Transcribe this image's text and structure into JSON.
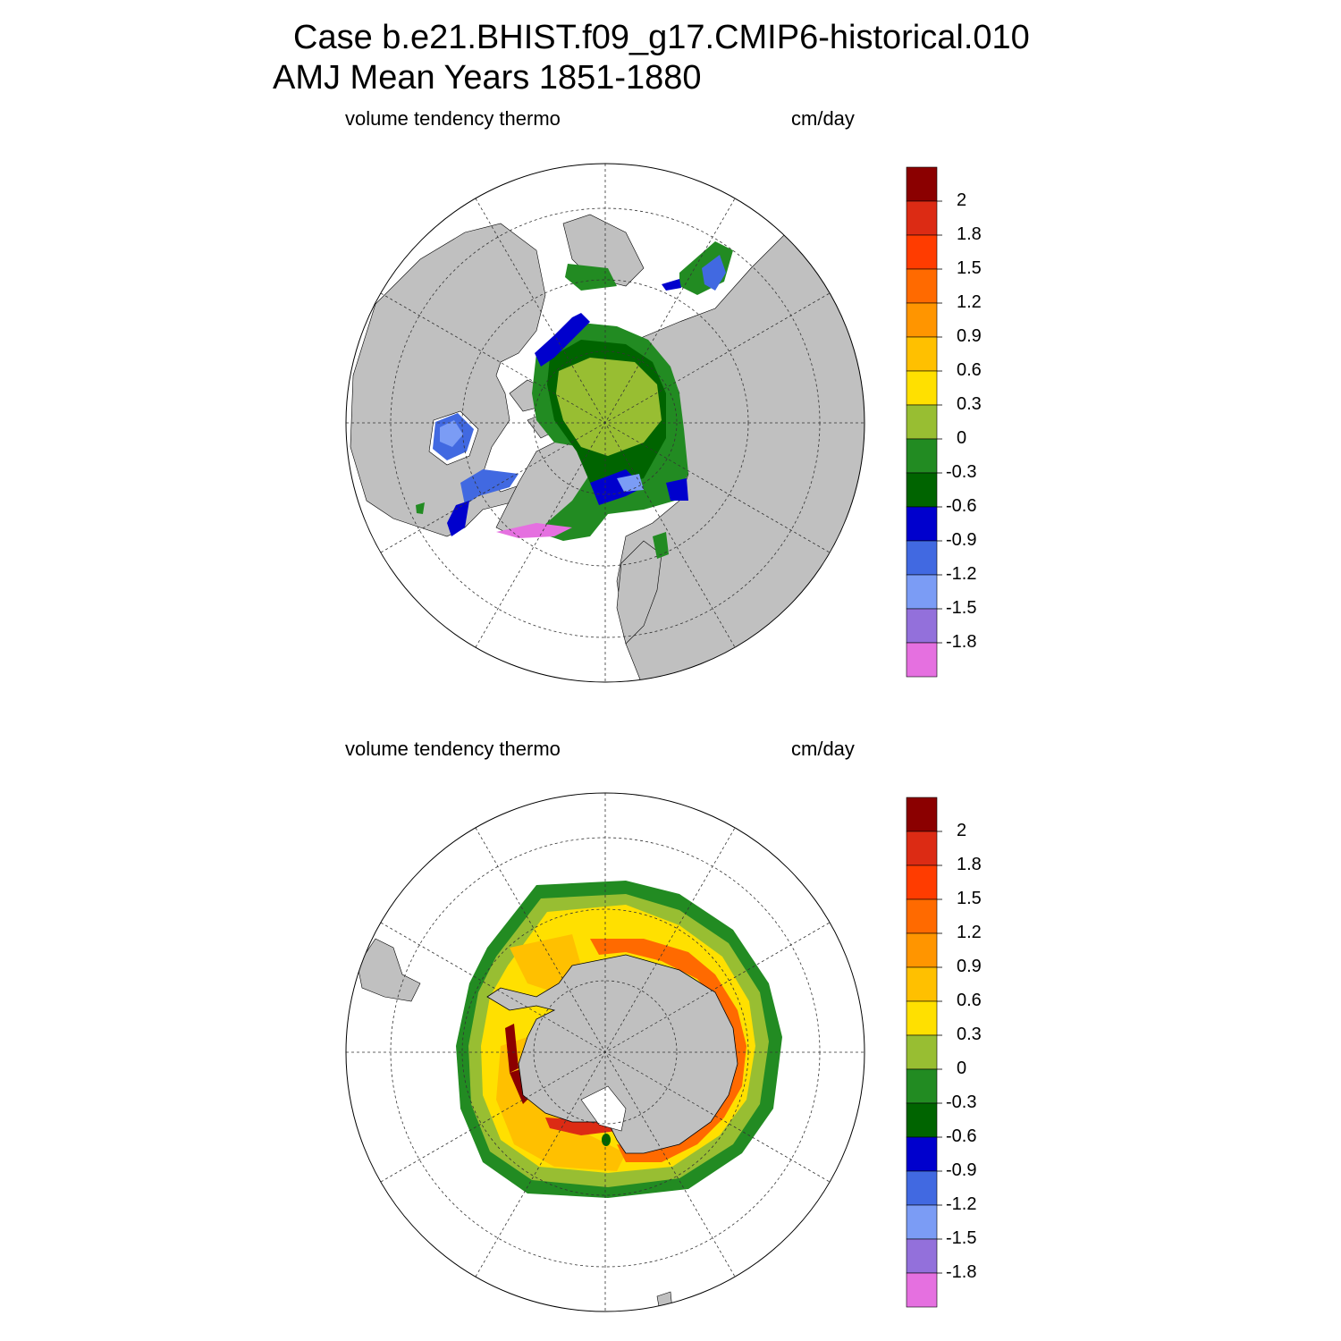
{
  "title": {
    "line1": "Case b.e21.BHIST.f09_g17.CMIP6-historical.010",
    "line2": "AMJ Mean   Years 1851-1880"
  },
  "panels": [
    {
      "id": "north",
      "variable": "volume tendency thermo",
      "units": "cm/day",
      "hemisphere": "Arctic"
    },
    {
      "id": "south",
      "variable": "volume tendency thermo",
      "units": "cm/day",
      "hemisphere": "Antarctic"
    }
  ],
  "colorbar": {
    "labels": [
      "2",
      "1.8",
      "1.5",
      "1.2",
      "0.9",
      "0.6",
      "0.3",
      "0",
      "-0.3",
      "-0.6",
      "-0.9",
      "-1.2",
      "-1.5",
      "-1.8"
    ],
    "colors": [
      "#8b0000",
      "#dc2b14",
      "#ff3c00",
      "#ff6a00",
      "#ff9500",
      "#ffc000",
      "#ffe000",
      "#98be32",
      "#228b22",
      "#006400",
      "#0000cd",
      "#4169e1",
      "#7b9cf5",
      "#9370db",
      "#e570e0"
    ]
  },
  "land_color": "#c0c0c0"
}
